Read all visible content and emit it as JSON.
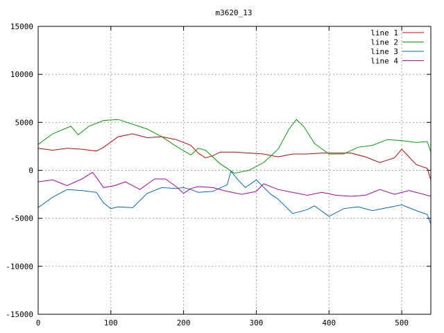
{
  "chart_data": {
    "type": "line",
    "title": "m3620_13",
    "xlabel": "",
    "ylabel": "",
    "xlim": [
      0,
      540
    ],
    "ylim": [
      -15000,
      15000
    ],
    "x_ticks": [
      0,
      100,
      200,
      300,
      400,
      500
    ],
    "y_ticks": [
      -15000,
      -10000,
      -5000,
      0,
      5000,
      10000,
      15000
    ],
    "grid": true,
    "legend_position": "top-right",
    "series": [
      {
        "name": "line 1",
        "color": "#cc0000",
        "x": [
          0,
          20,
          40,
          60,
          80,
          90,
          110,
          130,
          150,
          170,
          190,
          210,
          220,
          230,
          240,
          250,
          270,
          290,
          310,
          330,
          350,
          370,
          390,
          410,
          430,
          450,
          470,
          490,
          500,
          520,
          535,
          540
        ],
        "y": [
          2300,
          2100,
          2300,
          2200,
          2000,
          2400,
          3500,
          3800,
          3400,
          3500,
          3200,
          2600,
          1800,
          1300,
          1500,
          1900,
          1900,
          1800,
          1700,
          1400,
          1700,
          1700,
          1800,
          1800,
          1800,
          1400,
          800,
          1300,
          2200,
          600,
          200,
          -1000
        ]
      },
      {
        "name": "line 2",
        "color": "#00a000",
        "x": [
          0,
          20,
          45,
          55,
          70,
          90,
          110,
          130,
          150,
          170,
          190,
          210,
          220,
          230,
          250,
          270,
          290,
          310,
          330,
          345,
          355,
          365,
          380,
          400,
          420,
          440,
          460,
          480,
          500,
          520,
          535,
          540
        ],
        "y": [
          2700,
          3800,
          4600,
          3700,
          4600,
          5200,
          5300,
          4800,
          4300,
          3500,
          2500,
          1600,
          2300,
          2100,
          700,
          -300,
          0,
          800,
          2200,
          4300,
          5300,
          4600,
          2800,
          1700,
          1700,
          2400,
          2600,
          3200,
          3100,
          2900,
          3000,
          1900
        ]
      },
      {
        "name": "line 3",
        "color": "#0066cc",
        "x": [
          0,
          20,
          40,
          60,
          80,
          90,
          100,
          110,
          130,
          150,
          170,
          190,
          200,
          210,
          220,
          240,
          260,
          265,
          275,
          285,
          300,
          320,
          330,
          350,
          370,
          380,
          400,
          420,
          440,
          460,
          480,
          500,
          520,
          535,
          540
        ],
        "y": [
          -3900,
          -2800,
          -2000,
          -2100,
          -2300,
          -3400,
          -4000,
          -3800,
          -3900,
          -2400,
          -1800,
          -1900,
          -1800,
          -2000,
          -2300,
          -2200,
          -1500,
          -100,
          -1000,
          -1800,
          -1000,
          -2500,
          -3000,
          -4500,
          -4100,
          -3700,
          -4800,
          -4000,
          -3800,
          -4200,
          -3900,
          -3600,
          -4200,
          -4600,
          -5600
        ]
      },
      {
        "name": "line 4",
        "color": "#b000b0",
        "x": [
          0,
          20,
          30,
          40,
          60,
          75,
          90,
          105,
          120,
          140,
          160,
          175,
          190,
          200,
          210,
          220,
          240,
          260,
          280,
          300,
          310,
          330,
          350,
          370,
          390,
          410,
          430,
          450,
          470,
          490,
          510,
          530,
          540
        ],
        "y": [
          -1200,
          -1000,
          -1300,
          -1600,
          -900,
          -200,
          -1800,
          -1600,
          -1200,
          -2000,
          -900,
          -900,
          -1700,
          -2400,
          -1900,
          -1700,
          -1800,
          -2200,
          -2500,
          -2200,
          -1400,
          -2000,
          -2300,
          -2600,
          -2300,
          -2600,
          -2700,
          -2600,
          -2000,
          -2500,
          -2100,
          -2500,
          -2700
        ]
      }
    ]
  }
}
